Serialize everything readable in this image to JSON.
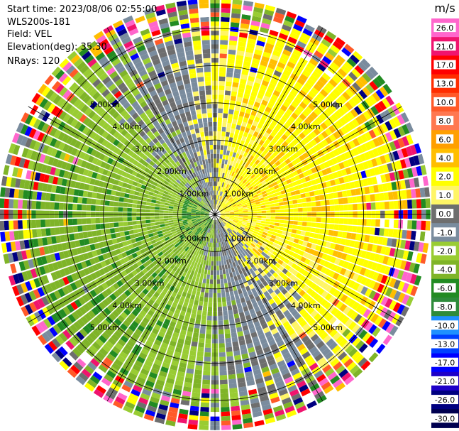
{
  "header": {
    "start_time": "Start time: 2023/08/06 02:55:00",
    "site": "WLS200s-181",
    "field": "Field: VEL",
    "elevation": "Elevation(deg): 35.30",
    "nrays": "NRays: 120"
  },
  "chart_data": {
    "type": "ppi",
    "field": "VEL",
    "units": "m/s",
    "n_rays": 120,
    "range_rings_km": [
      1.0,
      2.0,
      3.0,
      4.0,
      5.0
    ],
    "ring_labels": [
      "1.00km",
      "2.00km",
      "3.00km",
      "4.00km",
      "5.00km"
    ],
    "max_range_km": 5.8,
    "colorbar": {
      "label": "m/s",
      "ticks": [
        "26.0",
        "21.0",
        "17.0",
        "13.0",
        "10.0",
        "8.0",
        "6.0",
        "4.0",
        "2.0",
        "1.0",
        "0.0",
        "-1.0",
        "-2.0",
        "-4.0",
        "-6.0",
        "-8.0",
        "-10.0",
        "-13.0",
        "-17.0",
        "-21.0",
        "-26.0",
        "-30.0"
      ],
      "colors": [
        "#ff66cc",
        "#f0146e",
        "#ff0000",
        "#ff2d00",
        "#ff5a28",
        "#ff7850",
        "#ff9f00",
        "#ffbe00",
        "#ffff00",
        "#fff566",
        "#6e6e6e",
        "#7a8c9e",
        "#99cc33",
        "#7fb428",
        "#228b22",
        "#2e8b3a",
        "#1e90ff",
        "#0040ff",
        "#0000ff",
        "#1e00c8",
        "#000080",
        "#000050"
      ]
    },
    "pattern": "dipole: positive (yellow/orange) radial velocity toward the east-northeast, negative (green) toward the west-southwest, noisy multicolor speckle beyond ~4.5 km"
  }
}
